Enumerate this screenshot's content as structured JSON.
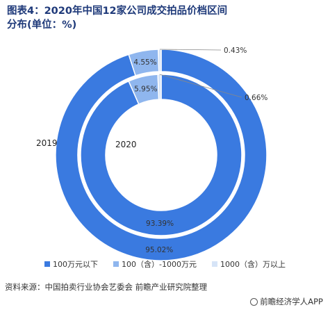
{
  "title": "图表4：2020年中国12家公司成交拍品价档区间分布(单位：%)",
  "chart_data": {
    "type": "pie",
    "variant": "nested-donut",
    "title": "图表4：2020年中国12家公司成交拍品价档区间分布(单位：%)",
    "categories": [
      "100万元以下",
      "100（含）-1000万元",
      "1000（含）万以上"
    ],
    "colors": [
      "#3a7ae0",
      "#8fb6ee",
      "#d6e4f7"
    ],
    "series": [
      {
        "name": "2019",
        "ring": "outer",
        "values": [
          95.02,
          4.55,
          0.43
        ],
        "labels": [
          "95.02%",
          "4.55%",
          "0.43%"
        ]
      },
      {
        "name": "2020",
        "ring": "inner",
        "values": [
          93.39,
          5.95,
          0.66
        ],
        "labels": [
          "93.39%",
          "5.95%",
          "0.66%"
        ]
      }
    ],
    "legend": "bottom"
  },
  "source": "资料来源：中国拍卖行业协会艺委会 前瞻产业研究院整理",
  "brand": "前瞻经济学人APP"
}
